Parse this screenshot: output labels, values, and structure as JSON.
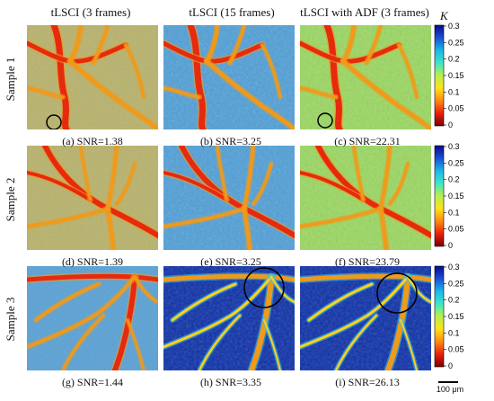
{
  "columns": [
    {
      "title": "tLSCI (3 frames)"
    },
    {
      "title": "tLSCI (15 frames)"
    },
    {
      "title": "tLSCI with ADF (3 frames)"
    }
  ],
  "rows": [
    {
      "label": "Sample 1",
      "captions": [
        "(a) SNR=1.38",
        "(b) SNR=3.25",
        "(c) SNR=22.31"
      ]
    },
    {
      "label": "Sample 2",
      "captions": [
        "(d) SNR=1.39",
        "(e) SNR=3.25",
        "(f) SNR=23.79"
      ]
    },
    {
      "label": "Sample 3",
      "captions": [
        "(g) SNR=1.44",
        "(h) SNR=3.35",
        "(i) SNR=26.13"
      ]
    }
  ],
  "colorbar": {
    "label": "K",
    "ticks": [
      "0.3",
      "0.25",
      "0.2",
      "0.15",
      "0.1",
      "0.05",
      "0"
    ],
    "colors": [
      "#0a0a8c",
      "#1a4fd6",
      "#19b8e8",
      "#3ee6c8",
      "#b8f04a",
      "#ffe21a",
      "#ff8a10",
      "#e8200c",
      "#7a0000"
    ]
  },
  "scale_bar": {
    "label": "100 μm"
  },
  "panel_colors": {
    "noisy_bg": "#b8b264",
    "mid_bg": "#4f9fd8",
    "adf_bg": "#9ad860",
    "vessel_hot": "#e62a10",
    "vessel_warm": "#f09a1a",
    "deep_bg": "#0b2fa8"
  }
}
